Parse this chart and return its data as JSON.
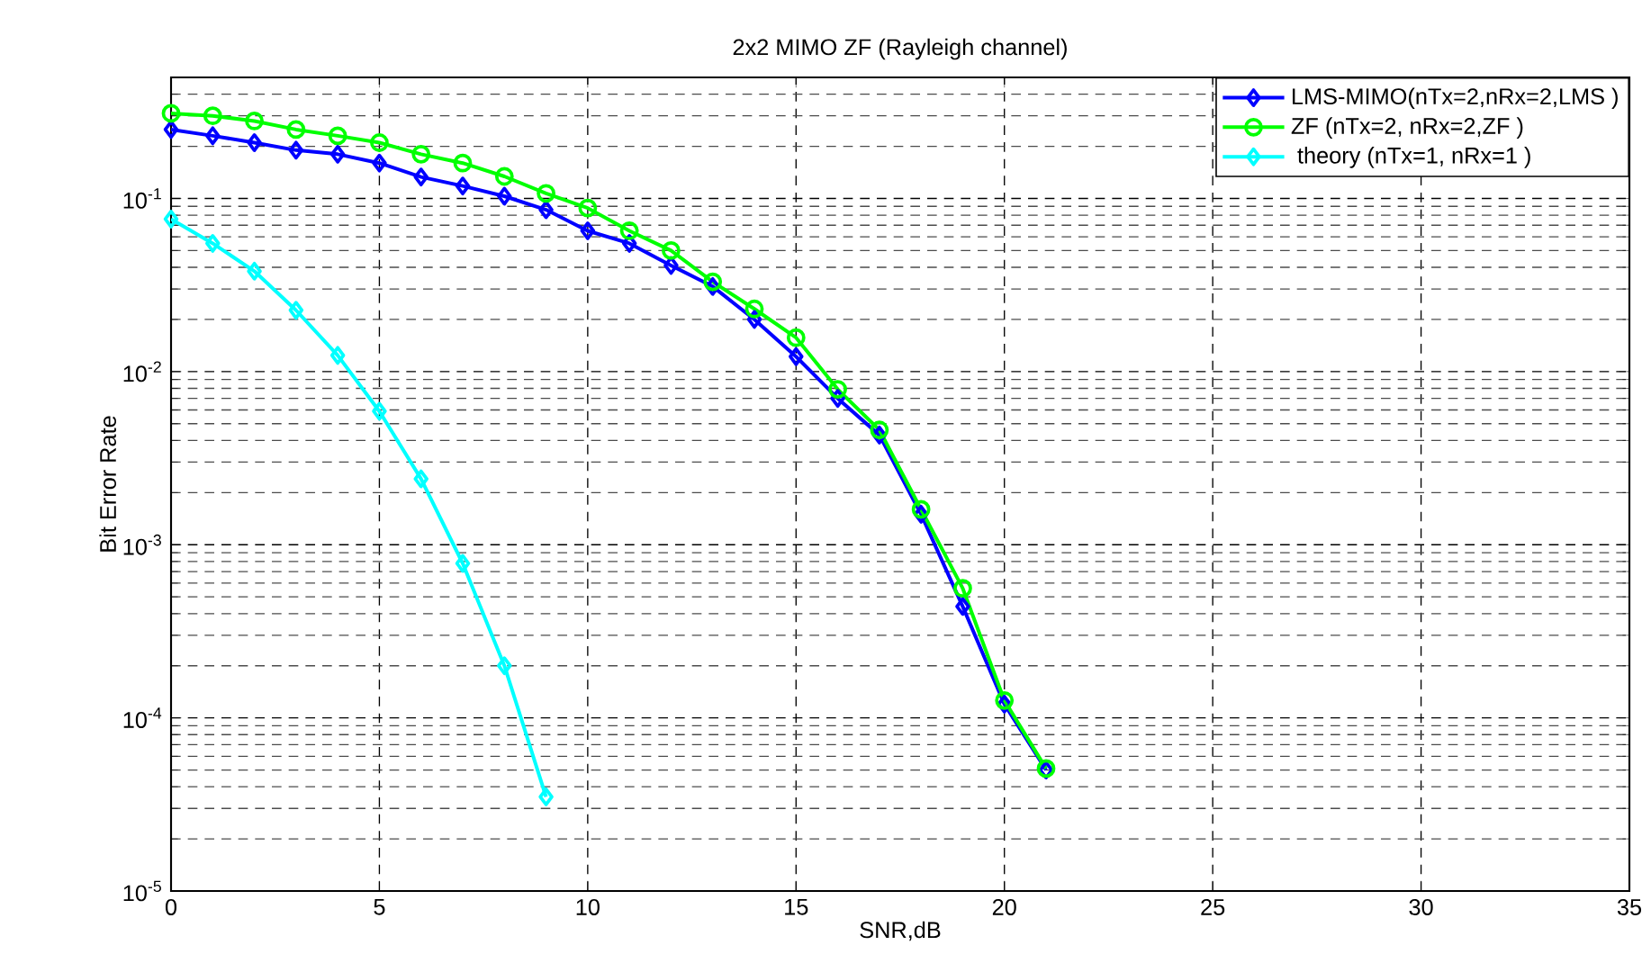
{
  "chart_data": {
    "type": "line",
    "title": "2x2 MIMO ZF  (Rayleigh channel)",
    "xlabel": "SNR,dB",
    "ylabel": "Bit Error Rate",
    "log": "y",
    "grid": true,
    "legend": "top right",
    "line_style": "solid",
    "xlim": [
      0,
      35
    ],
    "xticks": [
      0,
      5,
      10,
      15,
      20,
      25,
      30,
      35
    ],
    "ylim": [
      1e-05,
      0.5
    ],
    "yticks": [
      {
        "value": 1e-05,
        "label": "10$^{-5}$"
      },
      {
        "value": 0.0001,
        "label": "10$^{-4}$"
      },
      {
        "value": 0.001,
        "label": "10$^{-3}$"
      },
      {
        "value": 0.01,
        "label": "10$^{-2}$"
      },
      {
        "value": 0.1,
        "label": "10$^{-1}$"
      }
    ],
    "x": [
      0,
      1,
      2,
      3,
      4,
      5,
      6,
      7,
      8,
      9,
      10,
      11,
      12,
      13,
      14,
      15,
      16,
      17,
      18,
      19,
      20,
      21
    ],
    "series": [
      {
        "name": "LMS-MIMO(nTx=2,nRx=2,LMS )",
        "color": "#0000ff",
        "marker": "diamond",
        "values": [
          0.25,
          0.23,
          0.21,
          0.19,
          0.18,
          0.16,
          0.133,
          0.118,
          0.103,
          0.086,
          0.065,
          0.055,
          0.041,
          0.031,
          0.02,
          0.0122,
          0.007,
          0.0043,
          0.0015,
          0.00044,
          0.00012,
          5e-05
        ]
      },
      {
        "name": "ZF (nTx=2, nRx=2,ZF )",
        "color": "#00ff00",
        "marker": "circle",
        "values": [
          0.31,
          0.3,
          0.28,
          0.25,
          0.23,
          0.21,
          0.18,
          0.16,
          0.134,
          0.107,
          0.088,
          0.065,
          0.05,
          0.033,
          0.023,
          0.0157,
          0.0079,
          0.0046,
          0.0016,
          0.00056,
          0.000126,
          5.1e-05
        ]
      },
      {
        "name": " theory (nTx=1, nRx=1 )",
        "color": "#00ffff",
        "marker": "diamond",
        "x": [
          0,
          1,
          2,
          3,
          4,
          5,
          6,
          7,
          8,
          9
        ],
        "values": [
          0.076,
          0.055,
          0.038,
          0.0226,
          0.0124,
          0.0059,
          0.0024,
          0.00078,
          0.0002,
          3.5e-05
        ]
      }
    ]
  }
}
